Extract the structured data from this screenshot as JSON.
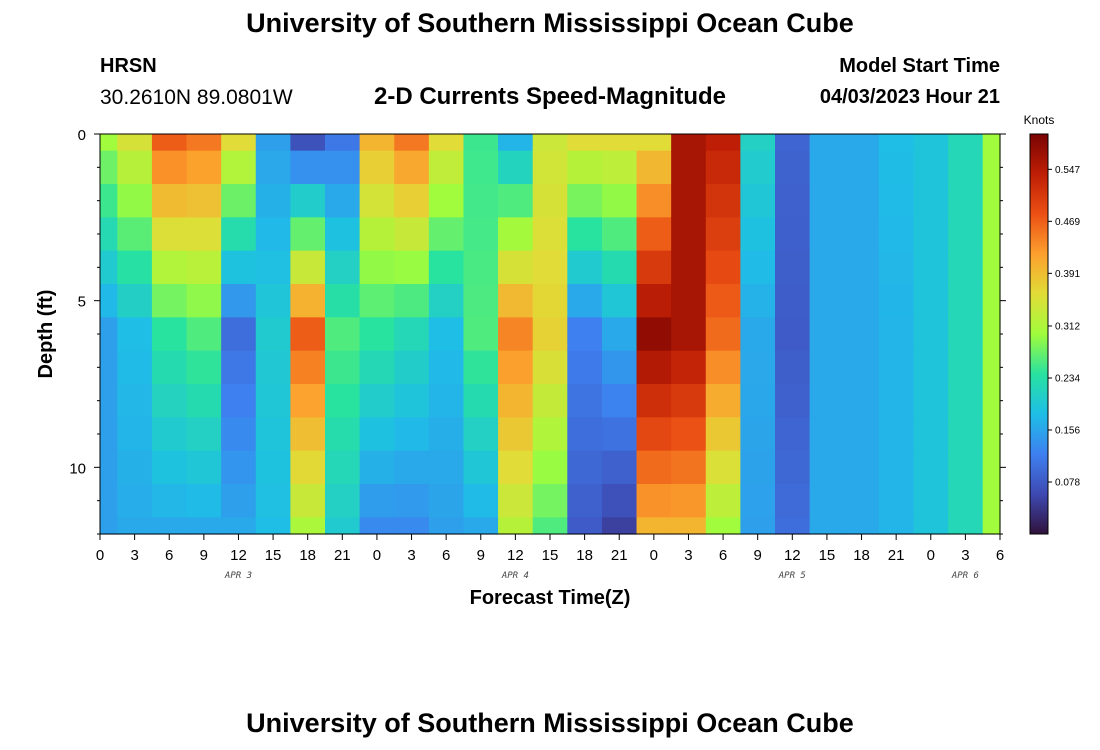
{
  "header": {
    "title": "University of Southern Mississippi Ocean Cube",
    "station": "HRSN",
    "coordinates": "30.2610N  89.0801W",
    "subtitle": "2-D Currents Speed-Magnitude",
    "model_start_label": "Model Start Time",
    "model_start_value": "04/03/2023 Hour 21"
  },
  "footer": {
    "title": "University of Southern Mississippi Ocean Cube"
  },
  "chart_data": {
    "type": "heatmap",
    "title": "2-D Currents Speed-Magnitude",
    "xlabel": "Forecast Time(Z)",
    "ylabel": "Depth (ft)",
    "x_units": "hours since APR 3 00Z",
    "xlim": [
      0,
      78
    ],
    "ylim": [
      0,
      12
    ],
    "y_inverted": true,
    "x_ticks": [
      0,
      3,
      6,
      9,
      12,
      15,
      18,
      21,
      24,
      27,
      30,
      33,
      36,
      39,
      42,
      45,
      48,
      51,
      54,
      57,
      60,
      63,
      66,
      69,
      72,
      75,
      78
    ],
    "x_tick_labels": [
      "0",
      "3",
      "6",
      "9",
      "12",
      "15",
      "18",
      "21",
      "0",
      "3",
      "6",
      "9",
      "12",
      "15",
      "18",
      "21",
      "0",
      "3",
      "6",
      "9",
      "12",
      "15",
      "18",
      "21",
      "0",
      "3",
      "6"
    ],
    "date_labels": [
      {
        "hour": 12,
        "label": "APR 3"
      },
      {
        "hour": 36,
        "label": "APR 4"
      },
      {
        "hour": 60,
        "label": "APR 5"
      },
      {
        "hour": 75,
        "label": "APR 6"
      }
    ],
    "y_ticks": [
      0,
      5,
      10
    ],
    "y_tick_labels": [
      "0",
      "5",
      "10"
    ],
    "colorbar": {
      "title": "Knots",
      "min": 0.0,
      "max": 0.6,
      "ticks": [
        0.078,
        0.156,
        0.234,
        0.312,
        0.391,
        0.469,
        0.547
      ],
      "tick_labels": [
        "0.078",
        "0.156",
        "0.234",
        "0.312",
        "0.391",
        "0.469",
        "0.547"
      ]
    },
    "depths_ft": [
      0,
      1,
      2,
      3,
      4,
      5,
      6,
      7,
      8,
      9,
      10,
      11,
      12
    ],
    "speed_knots_series": [
      {
        "name": "depth 0 ft",
        "hours": [
          0,
          3,
          6,
          9,
          12,
          15,
          18,
          21,
          24,
          27,
          30,
          33,
          36,
          39,
          42,
          45,
          48,
          51,
          54,
          57,
          60,
          63,
          66,
          69,
          72,
          75,
          78
        ],
        "values": [
          0.3,
          0.35,
          0.47,
          0.45,
          0.36,
          0.15,
          0.07,
          0.11,
          0.4,
          0.45,
          0.36,
          0.25,
          0.17,
          0.34,
          0.36,
          0.36,
          0.36,
          0.56,
          0.54,
          0.21,
          0.09,
          0.16,
          0.16,
          0.18,
          0.19,
          0.22,
          0.3
        ]
      },
      {
        "name": "depth 6 ft",
        "hours": [
          0,
          3,
          6,
          9,
          12,
          15,
          18,
          21,
          24,
          27,
          30,
          33,
          36,
          39,
          42,
          45,
          48,
          51,
          54,
          57,
          60,
          63,
          66,
          69,
          72,
          75,
          78
        ],
        "values": [
          0.15,
          0.18,
          0.24,
          0.26,
          0.1,
          0.2,
          0.47,
          0.26,
          0.24,
          0.22,
          0.18,
          0.26,
          0.44,
          0.37,
          0.12,
          0.16,
          0.58,
          0.56,
          0.46,
          0.16,
          0.08,
          0.16,
          0.16,
          0.17,
          0.19,
          0.22,
          0.3
        ]
      },
      {
        "name": "depth 12 ft",
        "hours": [
          0,
          3,
          6,
          9,
          12,
          15,
          18,
          21,
          24,
          27,
          30,
          33,
          36,
          39,
          42,
          45,
          48,
          51,
          54,
          57,
          60,
          63,
          66,
          69,
          72,
          75,
          78
        ],
        "values": [
          0.15,
          0.16,
          0.16,
          0.16,
          0.16,
          0.18,
          0.31,
          0.2,
          0.13,
          0.13,
          0.15,
          0.16,
          0.32,
          0.26,
          0.08,
          0.05,
          0.4,
          0.4,
          0.3,
          0.15,
          0.1,
          0.16,
          0.16,
          0.17,
          0.19,
          0.22,
          0.3
        ]
      }
    ]
  }
}
